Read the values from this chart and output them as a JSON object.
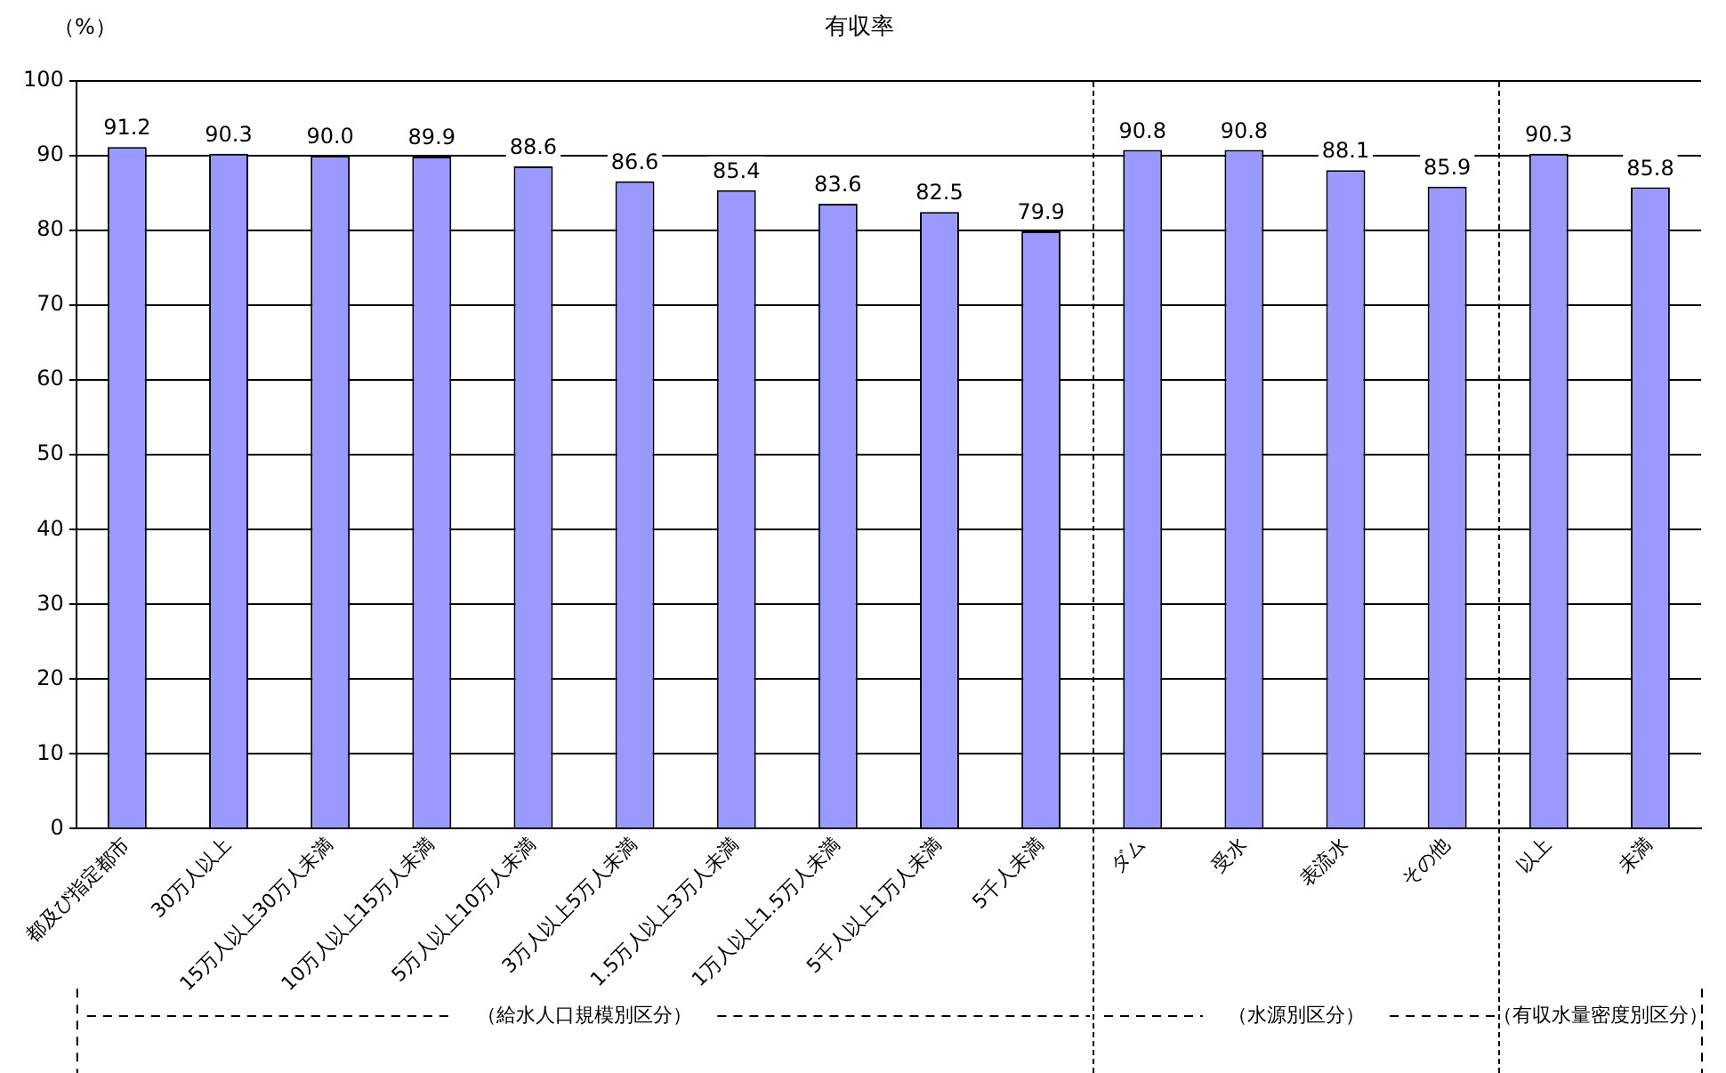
{
  "chart_data": {
    "type": "bar",
    "title": "有収率",
    "ylabel": "（%）",
    "categories": [
      "都及び指定都市",
      "30万人以上",
      "15万人以上30万人未満",
      "10万人以上15万人未満",
      "5万人以上10万人未満",
      "3万人以上5万人未満",
      "1.5万人以上3万人未満",
      "1万人以上1.5万人未満",
      "5千人以上1万人未満",
      "5千人未満",
      "ダム",
      "受水",
      "表流水",
      "その他",
      "以上",
      "未満"
    ],
    "values": [
      91.2,
      90.3,
      90.0,
      89.9,
      88.6,
      86.6,
      85.4,
      83.6,
      82.5,
      79.9,
      90.8,
      90.8,
      88.1,
      85.9,
      90.3,
      85.8
    ],
    "color": "#9999ff",
    "ylim": [
      0,
      100
    ],
    "yticks": [
      0,
      10,
      20,
      30,
      40,
      50,
      60,
      70,
      80,
      90,
      100
    ],
    "value_labels": [
      "91.2",
      "90.3",
      "90.0",
      "89.9",
      "88.6",
      "86.6",
      "85.4",
      "83.6",
      "82.5",
      "79.9",
      "90.8",
      "90.8",
      "88.1",
      "85.9",
      "90.3",
      "85.8"
    ],
    "grid": "y",
    "annotations": [
      "（給水人口規模別区分）",
      "（水源別区分）",
      "（有収水量密度別区分）"
    ]
  }
}
